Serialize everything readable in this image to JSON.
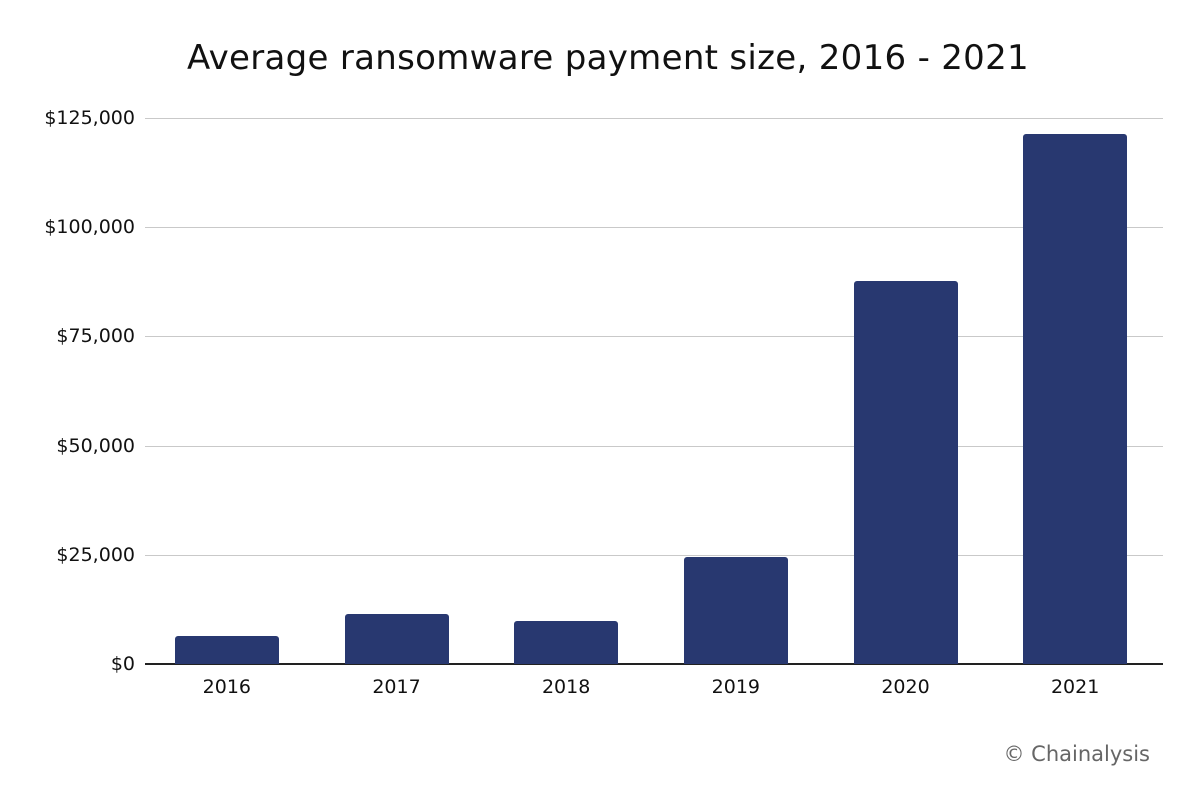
{
  "chart_data": {
    "type": "bar",
    "title": "Average ransomware payment size, 2016 - 2021",
    "xlabel": "",
    "ylabel": "",
    "categories": [
      "2016",
      "2017",
      "2018",
      "2019",
      "2020",
      "2021"
    ],
    "values": [
      6400,
      11400,
      9800,
      24500,
      87700,
      121300
    ],
    "ylim": [
      0,
      125000
    ],
    "yticks": [
      0,
      25000,
      50000,
      75000,
      100000,
      125000
    ],
    "ytick_labels": [
      "$0",
      "$25,000",
      "$50,000",
      "$75,000",
      "$100,000",
      "$125,000"
    ],
    "grid": true,
    "legend": null,
    "bar_color": "#283870",
    "credit": "© Chainalysis"
  },
  "header": {
    "title": "Average ransomware payment size, 2016 - 2021"
  },
  "footer": {
    "credit": "© Chainalysis"
  }
}
